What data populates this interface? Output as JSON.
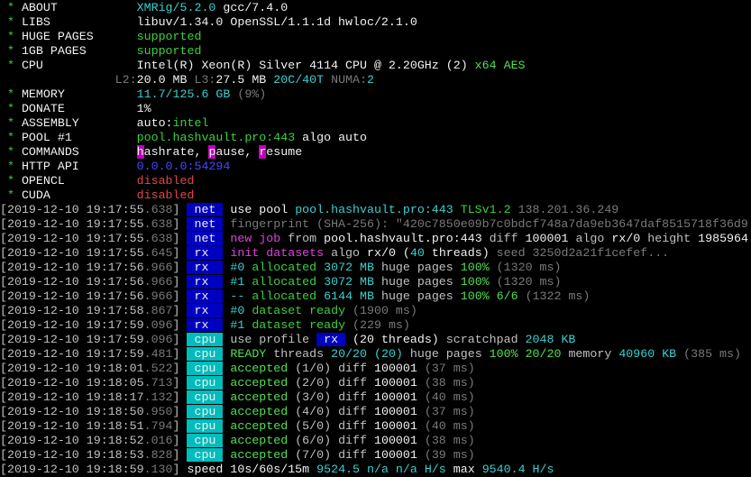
{
  "colors": {
    "background": "#000000",
    "tag_net_rx": "#0000c0",
    "tag_cpu": "#00bcbc",
    "highlight": "#c000c0",
    "cyan": "#3ad0d0",
    "green": "#3cd03c",
    "red": "#e04848",
    "blue": "#4848ff",
    "dim": "#7a7a7a"
  },
  "lines": [
    [
      {
        "t": " * ",
        "c": "g"
      },
      {
        "t": "ABOUT           ",
        "c": "W"
      },
      {
        "t": "XMRig/5.2.0",
        "c": "c"
      },
      {
        "t": " gcc/7.4.0",
        "c": "W"
      }
    ],
    [
      {
        "t": " * ",
        "c": "g"
      },
      {
        "t": "LIBS            ",
        "c": "W"
      },
      {
        "t": "libuv/1.34.0 OpenSSL/1.1.1d hwloc/2.1.0",
        "c": "W"
      }
    ],
    [
      {
        "t": " * ",
        "c": "g"
      },
      {
        "t": "HUGE PAGES      ",
        "c": "W"
      },
      {
        "t": "supported",
        "c": "g"
      }
    ],
    [
      {
        "t": " * ",
        "c": "g"
      },
      {
        "t": "1GB PAGES       ",
        "c": "W"
      },
      {
        "t": "supported",
        "c": "g"
      }
    ],
    [
      {
        "t": " * ",
        "c": "g"
      },
      {
        "t": "CPU             ",
        "c": "W"
      },
      {
        "t": "Intel(R) Xeon(R) Silver 4114 CPU @ 2.20GHz (2) ",
        "c": "W"
      },
      {
        "t": "x64 AES",
        "c": "G"
      }
    ],
    [
      {
        "t": "                ",
        "c": "w"
      },
      {
        "t": "L2:",
        "c": "d"
      },
      {
        "t": "20.0 MB ",
        "c": "W"
      },
      {
        "t": "L3:",
        "c": "d"
      },
      {
        "t": "27.5 MB ",
        "c": "W"
      },
      {
        "t": "20C/40T ",
        "c": "c"
      },
      {
        "t": "NUMA:",
        "c": "d"
      },
      {
        "t": "2",
        "c": "c"
      }
    ],
    [
      {
        "t": " * ",
        "c": "g"
      },
      {
        "t": "MEMORY          ",
        "c": "W"
      },
      {
        "t": "11.7/125.6 GB ",
        "c": "c"
      },
      {
        "t": "(9%)",
        "c": "d"
      }
    ],
    [
      {
        "t": " * ",
        "c": "g"
      },
      {
        "t": "DONATE          ",
        "c": "W"
      },
      {
        "t": "1%",
        "c": "W"
      }
    ],
    [
      {
        "t": " * ",
        "c": "g"
      },
      {
        "t": "ASSEMBLY        ",
        "c": "W"
      },
      {
        "t": "auto:",
        "c": "W"
      },
      {
        "t": "intel",
        "c": "g"
      }
    ],
    [
      {
        "t": " * ",
        "c": "g"
      },
      {
        "t": "POOL #1         ",
        "c": "W"
      },
      {
        "t": "pool.hashvault.pro:443",
        "c": "g"
      },
      {
        "t": " algo auto",
        "c": "W"
      }
    ],
    [
      {
        "t": " * ",
        "c": "g"
      },
      {
        "t": "COMMANDS        ",
        "c": "W"
      },
      {
        "t": "h",
        "c": "hm"
      },
      {
        "t": "ashrate, ",
        "c": "W"
      },
      {
        "t": "p",
        "c": "hm"
      },
      {
        "t": "ause, ",
        "c": "W"
      },
      {
        "t": "r",
        "c": "hm"
      },
      {
        "t": "esume",
        "c": "W"
      }
    ],
    [
      {
        "t": " * ",
        "c": "g"
      },
      {
        "t": "HTTP API        ",
        "c": "W"
      },
      {
        "t": "0.0.0.0:54294",
        "c": "b"
      }
    ],
    [
      {
        "t": " * ",
        "c": "g"
      },
      {
        "t": "OPENCL          ",
        "c": "W"
      },
      {
        "t": "disabled",
        "c": "r"
      }
    ],
    [
      {
        "t": " * ",
        "c": "g"
      },
      {
        "t": "CUDA            ",
        "c": "W"
      },
      {
        "t": "disabled",
        "c": "r"
      }
    ],
    [
      {
        "t": "[2019-12-10 19:17:55",
        "c": "w"
      },
      {
        "t": ".638",
        "c": "d"
      },
      {
        "t": "] ",
        "c": "w"
      },
      {
        "t": " net ",
        "c": "tn"
      },
      {
        "t": " use pool ",
        "c": "W"
      },
      {
        "t": "pool.hashvault.pro:443 ",
        "c": "c"
      },
      {
        "t": "TLSv1.2 ",
        "c": "g"
      },
      {
        "t": "138.201.36.249",
        "c": "d"
      }
    ],
    [
      {
        "t": "[2019-12-10 19:17:55",
        "c": "w"
      },
      {
        "t": ".638",
        "c": "d"
      },
      {
        "t": "] ",
        "c": "w"
      },
      {
        "t": " net ",
        "c": "tn"
      },
      {
        "t": " fingerprint (SHA-256): \"420c7850e09b7c0bdcf748a7da9eb3647daf8515718f36d9",
        "c": "d"
      }
    ],
    [
      {
        "t": "[2019-12-10 19:17:55",
        "c": "w"
      },
      {
        "t": ".638",
        "c": "d"
      },
      {
        "t": "] ",
        "c": "w"
      },
      {
        "t": " net ",
        "c": "tn"
      },
      {
        "t": " ",
        "c": "w"
      },
      {
        "t": "new job",
        "c": "m"
      },
      {
        "t": " from ",
        "c": "w"
      },
      {
        "t": "pool.hashvault.pro:443",
        "c": "W"
      },
      {
        "t": " diff ",
        "c": "w"
      },
      {
        "t": "100001",
        "c": "W"
      },
      {
        "t": " algo ",
        "c": "w"
      },
      {
        "t": "rx/0",
        "c": "W"
      },
      {
        "t": " height ",
        "c": "w"
      },
      {
        "t": "1985964",
        "c": "W"
      }
    ],
    [
      {
        "t": "[2019-12-10 19:17:55",
        "c": "w"
      },
      {
        "t": ".645",
        "c": "d"
      },
      {
        "t": "] ",
        "c": "w"
      },
      {
        "t": " rx  ",
        "c": "tn"
      },
      {
        "t": " ",
        "c": "w"
      },
      {
        "t": "init datasets",
        "c": "m"
      },
      {
        "t": " algo ",
        "c": "w"
      },
      {
        "t": "rx/0",
        "c": "W"
      },
      {
        "t": " (",
        "c": "W"
      },
      {
        "t": "40",
        "c": "c"
      },
      {
        "t": " threads) ",
        "c": "W"
      },
      {
        "t": "seed 3250d2a21f1cefef...",
        "c": "d"
      }
    ],
    [
      {
        "t": "[2019-12-10 19:17:56",
        "c": "w"
      },
      {
        "t": ".966",
        "c": "d"
      },
      {
        "t": "] ",
        "c": "w"
      },
      {
        "t": " rx  ",
        "c": "tn"
      },
      {
        "t": " ",
        "c": "w"
      },
      {
        "t": "#0",
        "c": "c"
      },
      {
        "t": " allocated ",
        "c": "g"
      },
      {
        "t": "3072 MB",
        "c": "c"
      },
      {
        "t": " huge pages ",
        "c": "w"
      },
      {
        "t": "100% ",
        "c": "G"
      },
      {
        "t": "(1320 ms)",
        "c": "d"
      }
    ],
    [
      {
        "t": "[2019-12-10 19:17:56",
        "c": "w"
      },
      {
        "t": ".966",
        "c": "d"
      },
      {
        "t": "] ",
        "c": "w"
      },
      {
        "t": " rx  ",
        "c": "tn"
      },
      {
        "t": " ",
        "c": "w"
      },
      {
        "t": "#1",
        "c": "c"
      },
      {
        "t": " allocated ",
        "c": "g"
      },
      {
        "t": "3072 MB",
        "c": "c"
      },
      {
        "t": " huge pages ",
        "c": "w"
      },
      {
        "t": "100% ",
        "c": "G"
      },
      {
        "t": "(1320 ms)",
        "c": "d"
      }
    ],
    [
      {
        "t": "[2019-12-10 19:17:56",
        "c": "w"
      },
      {
        "t": ".966",
        "c": "d"
      },
      {
        "t": "] ",
        "c": "w"
      },
      {
        "t": " rx  ",
        "c": "tn"
      },
      {
        "t": " ",
        "c": "w"
      },
      {
        "t": "--",
        "c": "c"
      },
      {
        "t": " allocated ",
        "c": "g"
      },
      {
        "t": "6144 MB",
        "c": "c"
      },
      {
        "t": " huge pages ",
        "c": "w"
      },
      {
        "t": "100% 6/6 ",
        "c": "G"
      },
      {
        "t": "(1322 ms)",
        "c": "d"
      }
    ],
    [
      {
        "t": "[2019-12-10 19:17:58",
        "c": "w"
      },
      {
        "t": ".867",
        "c": "d"
      },
      {
        "t": "] ",
        "c": "w"
      },
      {
        "t": " rx  ",
        "c": "tn"
      },
      {
        "t": " ",
        "c": "w"
      },
      {
        "t": "#0",
        "c": "c"
      },
      {
        "t": " dataset ready ",
        "c": "g"
      },
      {
        "t": "(1900 ms)",
        "c": "d"
      }
    ],
    [
      {
        "t": "[2019-12-10 19:17:59",
        "c": "w"
      },
      {
        "t": ".096",
        "c": "d"
      },
      {
        "t": "] ",
        "c": "w"
      },
      {
        "t": " rx  ",
        "c": "tn"
      },
      {
        "t": " ",
        "c": "w"
      },
      {
        "t": "#1",
        "c": "c"
      },
      {
        "t": " dataset ready ",
        "c": "g"
      },
      {
        "t": "(229 ms)",
        "c": "d"
      }
    ],
    [
      {
        "t": "[2019-12-10 19:17:59",
        "c": "w"
      },
      {
        "t": ".096",
        "c": "d"
      },
      {
        "t": "] ",
        "c": "w"
      },
      {
        "t": " cpu ",
        "c": "tc"
      },
      {
        "t": " use profile ",
        "c": "w"
      },
      {
        "t": " rx ",
        "c": "hb"
      },
      {
        "t": " (20 threads)",
        "c": "W"
      },
      {
        "t": " scratchpad ",
        "c": "w"
      },
      {
        "t": "2048 KB",
        "c": "c"
      }
    ],
    [
      {
        "t": "[2019-12-10 19:17:59",
        "c": "w"
      },
      {
        "t": ".481",
        "c": "d"
      },
      {
        "t": "] ",
        "c": "w"
      },
      {
        "t": " cpu ",
        "c": "tc"
      },
      {
        "t": " ",
        "c": "w"
      },
      {
        "t": "READY",
        "c": "G"
      },
      {
        "t": " threads ",
        "c": "w"
      },
      {
        "t": "20/20 (20)",
        "c": "c"
      },
      {
        "t": " huge pages ",
        "c": "w"
      },
      {
        "t": "100% 20/20",
        "c": "G"
      },
      {
        "t": " memory ",
        "c": "w"
      },
      {
        "t": "40960 KB ",
        "c": "c"
      },
      {
        "t": "(385 ms)",
        "c": "d"
      }
    ],
    [
      {
        "t": "[2019-12-10 19:18:01",
        "c": "w"
      },
      {
        "t": ".522",
        "c": "d"
      },
      {
        "t": "] ",
        "c": "w"
      },
      {
        "t": " cpu ",
        "c": "tc"
      },
      {
        "t": " ",
        "c": "w"
      },
      {
        "t": "accepted",
        "c": "G"
      },
      {
        "t": " (1/0) diff ",
        "c": "w"
      },
      {
        "t": "100001 ",
        "c": "W"
      },
      {
        "t": "(37 ms)",
        "c": "d"
      }
    ],
    [
      {
        "t": "[2019-12-10 19:18:05",
        "c": "w"
      },
      {
        "t": ".713",
        "c": "d"
      },
      {
        "t": "] ",
        "c": "w"
      },
      {
        "t": " cpu ",
        "c": "tc"
      },
      {
        "t": " ",
        "c": "w"
      },
      {
        "t": "accepted",
        "c": "G"
      },
      {
        "t": " (2/0) diff ",
        "c": "w"
      },
      {
        "t": "100001 ",
        "c": "W"
      },
      {
        "t": "(38 ms)",
        "c": "d"
      }
    ],
    [
      {
        "t": "[2019-12-10 19:18:17",
        "c": "w"
      },
      {
        "t": ".132",
        "c": "d"
      },
      {
        "t": "] ",
        "c": "w"
      },
      {
        "t": " cpu ",
        "c": "tc"
      },
      {
        "t": " ",
        "c": "w"
      },
      {
        "t": "accepted",
        "c": "G"
      },
      {
        "t": " (3/0) diff ",
        "c": "w"
      },
      {
        "t": "100001 ",
        "c": "W"
      },
      {
        "t": "(40 ms)",
        "c": "d"
      }
    ],
    [
      {
        "t": "[2019-12-10 19:18:50",
        "c": "w"
      },
      {
        "t": ".950",
        "c": "d"
      },
      {
        "t": "] ",
        "c": "w"
      },
      {
        "t": " cpu ",
        "c": "tc"
      },
      {
        "t": " ",
        "c": "w"
      },
      {
        "t": "accepted",
        "c": "G"
      },
      {
        "t": " (4/0) diff ",
        "c": "w"
      },
      {
        "t": "100001 ",
        "c": "W"
      },
      {
        "t": "(37 ms)",
        "c": "d"
      }
    ],
    [
      {
        "t": "[2019-12-10 19:18:51",
        "c": "w"
      },
      {
        "t": ".794",
        "c": "d"
      },
      {
        "t": "] ",
        "c": "w"
      },
      {
        "t": " cpu ",
        "c": "tc"
      },
      {
        "t": " ",
        "c": "w"
      },
      {
        "t": "accepted",
        "c": "G"
      },
      {
        "t": " (5/0) diff ",
        "c": "w"
      },
      {
        "t": "100001 ",
        "c": "W"
      },
      {
        "t": "(40 ms)",
        "c": "d"
      }
    ],
    [
      {
        "t": "[2019-12-10 19:18:52",
        "c": "w"
      },
      {
        "t": ".016",
        "c": "d"
      },
      {
        "t": "] ",
        "c": "w"
      },
      {
        "t": " cpu ",
        "c": "tc"
      },
      {
        "t": " ",
        "c": "w"
      },
      {
        "t": "accepted",
        "c": "G"
      },
      {
        "t": " (6/0) diff ",
        "c": "w"
      },
      {
        "t": "100001 ",
        "c": "W"
      },
      {
        "t": "(38 ms)",
        "c": "d"
      }
    ],
    [
      {
        "t": "[2019-12-10 19:18:53",
        "c": "w"
      },
      {
        "t": ".828",
        "c": "d"
      },
      {
        "t": "] ",
        "c": "w"
      },
      {
        "t": " cpu ",
        "c": "tc"
      },
      {
        "t": " ",
        "c": "w"
      },
      {
        "t": "accepted",
        "c": "G"
      },
      {
        "t": " (7/0) diff ",
        "c": "w"
      },
      {
        "t": "100001 ",
        "c": "W"
      },
      {
        "t": "(39 ms)",
        "c": "d"
      }
    ],
    [
      {
        "t": "[2019-12-10 19:18:59",
        "c": "w"
      },
      {
        "t": ".130",
        "c": "d"
      },
      {
        "t": "] ",
        "c": "w"
      },
      {
        "t": "speed 10s/60s/15m ",
        "c": "W"
      },
      {
        "t": "9524.5 ",
        "c": "c"
      },
      {
        "t": "n/a n/a ",
        "c": "c"
      },
      {
        "t": "H/s",
        "c": "c"
      },
      {
        "t": " max ",
        "c": "W"
      },
      {
        "t": "9540.4 H/s",
        "c": "c"
      }
    ]
  ]
}
